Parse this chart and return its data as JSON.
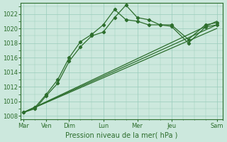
{
  "bg_color": "#cce8dd",
  "grid_color": "#99ccbb",
  "line_color": "#2d6e2d",
  "title": "Pression niveau de la mer( hPa )",
  "xlabels": [
    "Mar",
    "Ven",
    "Dim",
    "Lun",
    "Mer",
    "Jeu",
    "Sam"
  ],
  "xtick_pos": [
    0,
    8,
    16,
    28,
    40,
    52,
    68
  ],
  "xlim": [
    -1,
    70
  ],
  "ylim": [
    1007.5,
    1023.5
  ],
  "yticks": [
    1008,
    1010,
    1012,
    1014,
    1016,
    1018,
    1020,
    1022
  ],
  "straight_line_x": [
    0,
    68
  ],
  "straight_line_y": [
    1008.5,
    1021.0
  ],
  "straight_line2_x": [
    0,
    68
  ],
  "straight_line2_y": [
    1008.5,
    1020.5
  ],
  "straight_line3_x": [
    0,
    68
  ],
  "straight_line3_y": [
    1008.5,
    1020.0
  ],
  "peaked_line1_x": [
    0,
    4,
    8,
    12,
    16,
    20,
    24,
    28,
    32,
    36,
    40,
    44,
    48,
    52,
    58,
    64,
    68
  ],
  "peaked_line1_y": [
    1008.5,
    1009.0,
    1010.8,
    1012.5,
    1015.5,
    1017.5,
    1019.0,
    1019.5,
    1021.5,
    1023.2,
    1021.5,
    1021.2,
    1020.5,
    1020.3,
    1018.0,
    1020.2,
    1020.5
  ],
  "peaked_line2_x": [
    0,
    4,
    8,
    12,
    16,
    20,
    24,
    28,
    32,
    36,
    40,
    44,
    48,
    52,
    58,
    64,
    68
  ],
  "peaked_line2_y": [
    1008.5,
    1009.2,
    1011.0,
    1013.0,
    1016.0,
    1018.2,
    1019.2,
    1020.5,
    1022.6,
    1021.2,
    1021.0,
    1020.5,
    1020.5,
    1020.5,
    1018.5,
    1020.5,
    1020.8
  ]
}
